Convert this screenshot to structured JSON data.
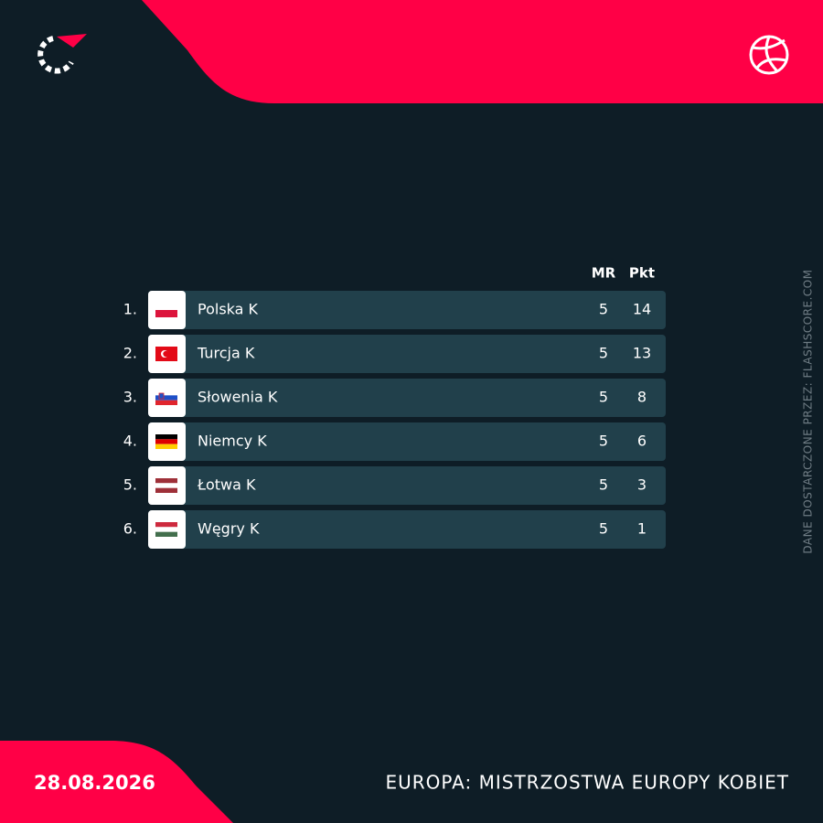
{
  "table": {
    "columns": [
      "MR",
      "Pkt"
    ],
    "rows": [
      {
        "rank": "1.",
        "team": "Polska K",
        "mr": 5,
        "pkt": 14
      },
      {
        "rank": "2.",
        "team": "Turcja K",
        "mr": 5,
        "pkt": 13
      },
      {
        "rank": "3.",
        "team": "Słowenia K",
        "mr": 5,
        "pkt": 8
      },
      {
        "rank": "4.",
        "team": "Niemcy K",
        "mr": 5,
        "pkt": 6
      },
      {
        "rank": "5.",
        "team": "Łotwa K",
        "mr": 5,
        "pkt": 3
      },
      {
        "rank": "6.",
        "team": "Węgry K",
        "mr": 5,
        "pkt": 1
      }
    ]
  },
  "footer": {
    "date": "28.08.2026",
    "competition": "EUROPA: MISTRZOSTWA EUROPY KOBIET"
  },
  "credit": "DANE DOSTARCZONE PRZEZ: FLASHSCORE.COM"
}
